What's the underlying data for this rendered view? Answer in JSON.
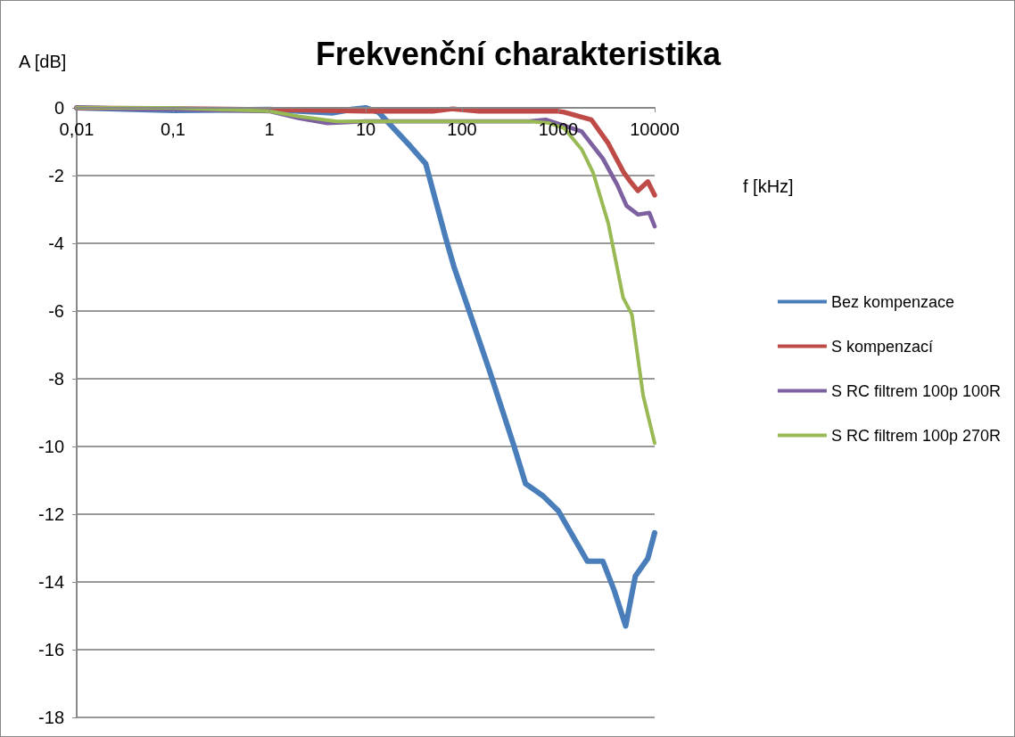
{
  "chart_data": {
    "type": "line",
    "title": "Frekvenční charakteristika",
    "xlabel": "f [kHz]",
    "ylabel": "A [dB]",
    "log": "x",
    "xlim": [
      0.01,
      10000
    ],
    "xticks": [
      {
        "value": 0.01,
        "label": "0,01"
      },
      {
        "value": 0.1,
        "label": "0,1"
      },
      1,
      10,
      100,
      1000,
      10000
    ],
    "ylim": [
      -18,
      0
    ],
    "yticks": [
      -18,
      -16,
      -14,
      -12,
      -10,
      -8,
      -6,
      -4,
      -2,
      0
    ],
    "grid": "y",
    "legend": "right",
    "marker": "none",
    "line_style": "solid",
    "series": [
      {
        "name": "Bez kompenzace",
        "color": "#4a7ebb",
        "x": [
          0.01,
          0.1,
          1,
          4.5,
          7,
          10,
          13.6,
          29,
          42,
          68,
          83,
          120,
          195,
          345,
          457,
          700,
          1000,
          2000,
          2900,
          3800,
          5000,
          6300,
          8500,
          10000
        ],
        "values": [
          0,
          -0.08,
          -0.05,
          -0.15,
          -0.05,
          0,
          -0.13,
          -1.13,
          -1.65,
          -3.86,
          -4.72,
          -6.04,
          -7.8,
          -9.97,
          -11.1,
          -11.47,
          -11.9,
          -13.39,
          -13.39,
          -14.25,
          -15.3,
          -13.83,
          -13.3,
          -12.55
        ]
      },
      {
        "name": "S kompenzací",
        "color": "#be4b48",
        "x": [
          0.01,
          1,
          10,
          50,
          80,
          150,
          1000,
          1150,
          2200,
          3300,
          4800,
          5500,
          6700,
          8500,
          10000
        ],
        "values": [
          0,
          -0.05,
          -0.1,
          -0.1,
          -0.03,
          -0.1,
          -0.1,
          -0.13,
          -0.35,
          -1.05,
          -1.92,
          -2.15,
          -2.45,
          -2.18,
          -2.58
        ]
      },
      {
        "name": "S RC filtrem 100p 100R",
        "color": "#7d60a0",
        "x": [
          0.01,
          1,
          2,
          4,
          10,
          100,
          500,
          740,
          1750,
          2900,
          4100,
          5100,
          6700,
          8800,
          10000
        ],
        "values": [
          0,
          -0.1,
          -0.3,
          -0.45,
          -0.4,
          -0.4,
          -0.4,
          -0.35,
          -0.7,
          -1.5,
          -2.28,
          -2.89,
          -3.15,
          -3.1,
          -3.5
        ]
      },
      {
        "name": "S RC filtrem 100p 270R",
        "color": "#98b954",
        "x": [
          0.01,
          0.1,
          1,
          2,
          5,
          100,
          500,
          800,
          1150,
          1750,
          2300,
          3300,
          4700,
          5800,
          7600,
          10000
        ],
        "values": [
          0,
          0,
          -0.1,
          -0.25,
          -0.4,
          -0.4,
          -0.4,
          -0.45,
          -0.6,
          -1.23,
          -1.92,
          -3.41,
          -5.6,
          -6.1,
          -8.5,
          -9.9
        ]
      }
    ]
  }
}
